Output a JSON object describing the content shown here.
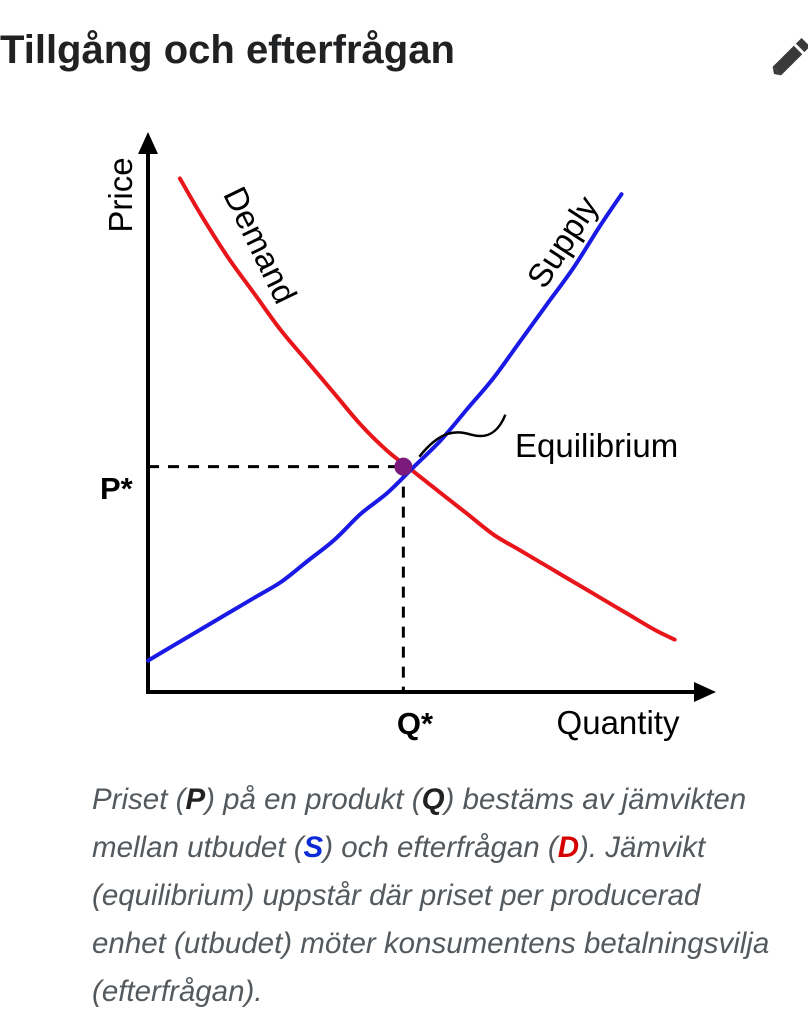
{
  "page": {
    "title": "Tillgång och efterfrågan",
    "edit_icon": "pencil-icon"
  },
  "chart_data": {
    "type": "line",
    "title": "",
    "xlabel": "Quantity",
    "ylabel": "Price",
    "xlim": [
      0,
      10
    ],
    "ylim": [
      0,
      10
    ],
    "grid": false,
    "series": [
      {
        "name": "Demand",
        "color": "#e8151b",
        "x": [
          0.6,
          1.0,
          1.5,
          2.0,
          2.5,
          3.0,
          3.5,
          4.0,
          4.5,
          5.0,
          5.5,
          6.0,
          6.5,
          7.0,
          7.5,
          8.0,
          8.5,
          9.0,
          9.5,
          9.9
        ],
        "values": [
          9.8,
          9.1,
          8.3,
          7.6,
          6.9,
          6.3,
          5.7,
          5.1,
          4.6,
          4.2,
          3.8,
          3.4,
          3.0,
          2.7,
          2.4,
          2.1,
          1.8,
          1.5,
          1.2,
          1.0
        ]
      },
      {
        "name": "Supply",
        "color": "#1a1ae6",
        "x": [
          0.0,
          0.5,
          1.0,
          1.5,
          2.0,
          2.5,
          3.0,
          3.5,
          4.0,
          4.5,
          5.0,
          5.5,
          6.0,
          6.5,
          7.0,
          7.5,
          8.0,
          8.5,
          8.9
        ],
        "values": [
          0.6,
          0.9,
          1.2,
          1.5,
          1.8,
          2.1,
          2.5,
          2.9,
          3.4,
          3.8,
          4.3,
          4.8,
          5.4,
          6.0,
          6.7,
          7.4,
          8.1,
          8.9,
          9.5
        ]
      }
    ],
    "curve_labels": {
      "demand": "Demand",
      "supply": "Supply"
    },
    "equilibrium": {
      "label": "Equilibrium",
      "x": 4.8,
      "y": 4.3,
      "color": "#7a1a7a"
    },
    "axis_markers": {
      "price": "P*",
      "quantity": "Q*"
    }
  },
  "caption": {
    "segments": [
      {
        "text": "Priset (",
        "style": "plain"
      },
      {
        "text": "P",
        "style": "sym-p"
      },
      {
        "text": ") på en produkt (",
        "style": "plain"
      },
      {
        "text": "Q",
        "style": "sym-q"
      },
      {
        "text": ") bestäms av jämvikten mellan utbudet (",
        "style": "plain"
      },
      {
        "text": "S",
        "style": "sym-s"
      },
      {
        "text": ") och efterfrågan (",
        "style": "plain"
      },
      {
        "text": "D",
        "style": "sym-d"
      },
      {
        "text": "). Jämvikt (equilibrium) uppstår där priset per producerad enhet (utbudet) möter konsumentens betalningsvilja (efterfrågan).",
        "style": "plain"
      }
    ]
  }
}
